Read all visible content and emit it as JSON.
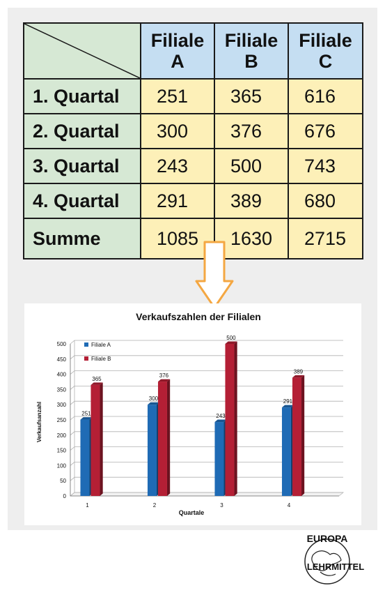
{
  "table": {
    "columns": [
      {
        "line1": "Filiale",
        "line2": "A"
      },
      {
        "line1": "Filiale",
        "line2": "B"
      },
      {
        "line1": "Filiale",
        "line2": "C"
      }
    ],
    "rows": [
      {
        "label": "1. Quartal",
        "values": [
          "251",
          "365",
          "616"
        ]
      },
      {
        "label": "2. Quartal",
        "values": [
          "300",
          "376",
          "676"
        ]
      },
      {
        "label": "3. Quartal",
        "values": [
          "243",
          "500",
          "743"
        ]
      },
      {
        "label": "4. Quartal",
        "values": [
          "291",
          "389",
          "680"
        ]
      }
    ],
    "sum_row": {
      "label": "Summe",
      "values": [
        "1085",
        "1630",
        "2715"
      ]
    }
  },
  "chart_data": {
    "type": "bar",
    "title": "Verkaufszahlen der Filialen",
    "xlabel": "Quartale",
    "ylabel": "Verkaufsanzahl",
    "categories": [
      "1",
      "2",
      "3",
      "4"
    ],
    "series": [
      {
        "name": "Filiale A",
        "values": [
          251,
          300,
          243,
          291
        ],
        "color": "#1f6bb5"
      },
      {
        "name": "Filiale B",
        "values": [
          365,
          376,
          500,
          389
        ],
        "color": "#b41f35"
      }
    ],
    "ylim": [
      0,
      500
    ],
    "yticks": [
      0,
      50,
      100,
      150,
      200,
      250,
      300,
      350,
      400,
      450,
      500
    ],
    "grid": true,
    "legend": "top-left",
    "data_labels": true
  },
  "colors": {
    "arrow": "#f4a742",
    "row_header": "#d6e8d4",
    "column_header": "#c5def2",
    "data_cell": "#fdf0b8"
  },
  "logo": {
    "top_text": "EUROPA",
    "bottom_text": "LEHRMITTEL"
  }
}
